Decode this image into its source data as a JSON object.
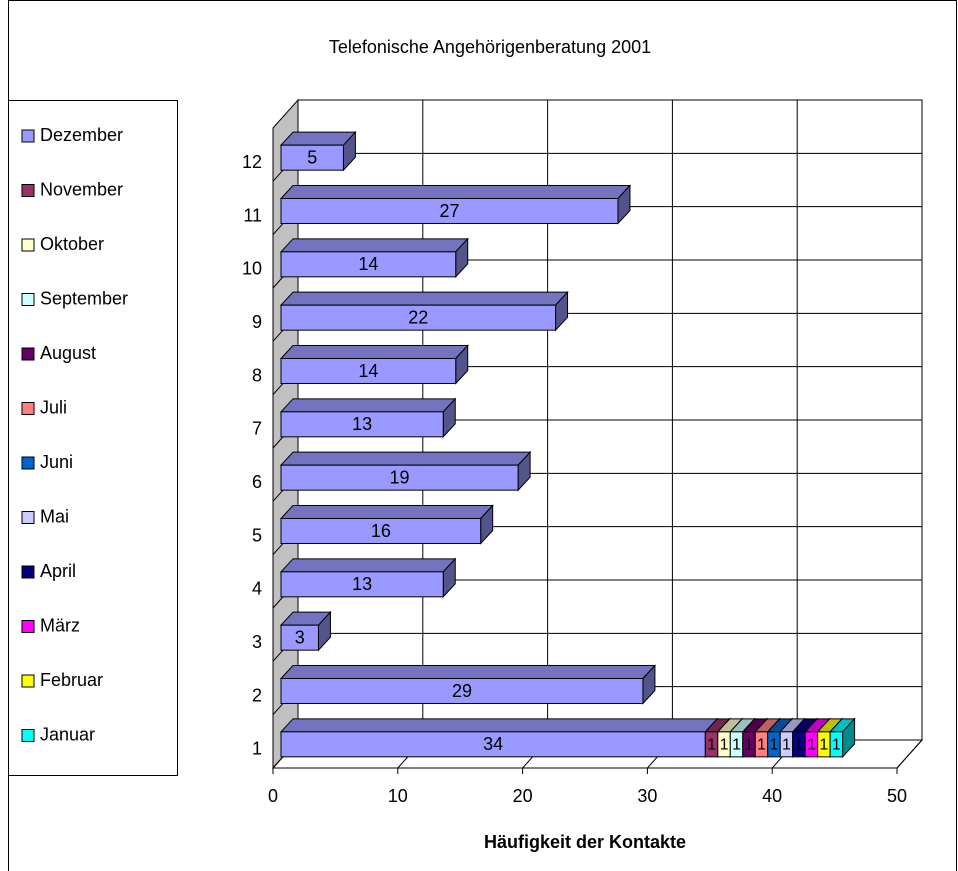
{
  "chart_data": {
    "type": "bar3d_stacked_horizontal",
    "title": "Telefonische Angehörigenberatung 2001",
    "x_label": "Häufigkeit der Kontakte",
    "categories": [
      "1",
      "2",
      "3",
      "4",
      "5",
      "6",
      "7",
      "8",
      "9",
      "10",
      "11",
      "12"
    ],
    "series": [
      {
        "name": "Dezember",
        "color": "#9999FF",
        "values": [
          34,
          29,
          3,
          13,
          16,
          19,
          13,
          14,
          22,
          14,
          27,
          5
        ]
      },
      {
        "name": "November",
        "color": "#993366",
        "values": [
          1,
          null,
          null,
          null,
          null,
          null,
          null,
          null,
          null,
          null,
          null,
          null
        ]
      },
      {
        "name": "Oktober",
        "color": "#FFFFCC",
        "values": [
          1,
          null,
          null,
          null,
          null,
          null,
          null,
          null,
          null,
          null,
          null,
          null
        ]
      },
      {
        "name": "September",
        "color": "#CCFFFF",
        "values": [
          1,
          null,
          null,
          null,
          null,
          null,
          null,
          null,
          null,
          null,
          null,
          null
        ]
      },
      {
        "name": "August",
        "color": "#660066",
        "values": [
          1,
          null,
          null,
          null,
          null,
          null,
          null,
          null,
          null,
          null,
          null,
          null
        ]
      },
      {
        "name": "Juli",
        "color": "#FF8080",
        "values": [
          1,
          null,
          null,
          null,
          null,
          null,
          null,
          null,
          null,
          null,
          null,
          null
        ]
      },
      {
        "name": "Juni",
        "color": "#0066CC",
        "values": [
          1,
          null,
          null,
          null,
          null,
          null,
          null,
          null,
          null,
          null,
          null,
          null
        ]
      },
      {
        "name": "Mai",
        "color": "#CCCCFF",
        "values": [
          1,
          null,
          null,
          null,
          null,
          null,
          null,
          null,
          null,
          null,
          null,
          null
        ]
      },
      {
        "name": "April",
        "color": "#000080",
        "values": [
          1,
          null,
          null,
          null,
          null,
          null,
          null,
          null,
          null,
          null,
          null,
          null
        ]
      },
      {
        "name": "März",
        "color": "#FF00FF",
        "values": [
          1,
          null,
          null,
          null,
          null,
          null,
          null,
          null,
          null,
          null,
          null,
          null
        ]
      },
      {
        "name": "Februar",
        "color": "#FFFF00",
        "values": [
          1,
          null,
          null,
          null,
          null,
          null,
          null,
          null,
          null,
          null,
          null,
          null
        ]
      },
      {
        "name": "Januar",
        "color": "#00FFFF",
        "values": [
          1,
          null,
          null,
          null,
          null,
          null,
          null,
          null,
          null,
          null,
          null,
          null
        ]
      }
    ],
    "xlim": [
      0,
      50
    ],
    "xticks": [
      0,
      10,
      20,
      30,
      40,
      50
    ],
    "grid": true,
    "legend": "left"
  }
}
